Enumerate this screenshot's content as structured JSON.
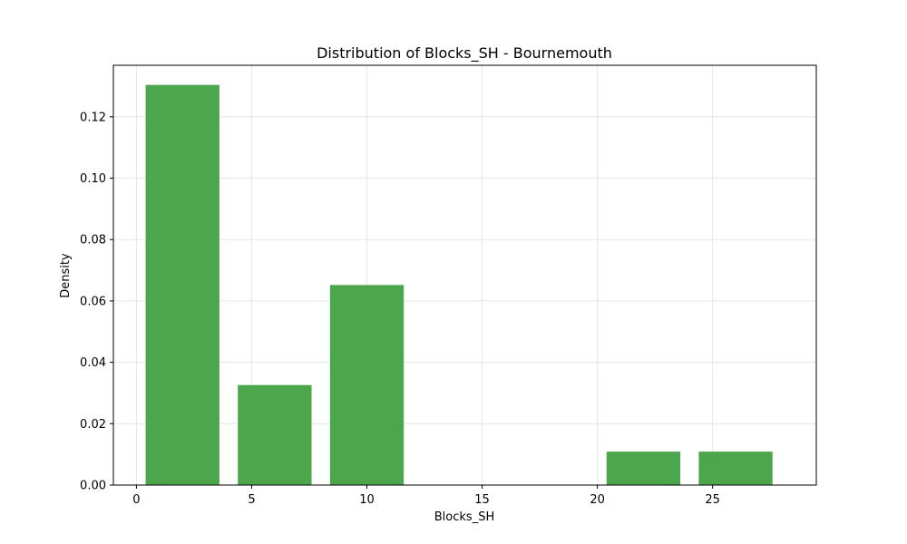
{
  "chart_data": {
    "type": "bar",
    "title": "Distribution of Blocks_SH - Bournemouth",
    "xlabel": "Blocks_SH",
    "ylabel": "Density",
    "xlim": [
      -1.0,
      29.5
    ],
    "ylim": [
      0.0,
      0.1368
    ],
    "xticks": [
      0,
      5,
      10,
      15,
      20,
      25
    ],
    "yticks": [
      0.0,
      0.02,
      0.04,
      0.06,
      0.08,
      0.1,
      0.12
    ],
    "ytick_labels": [
      "0.00",
      "0.02",
      "0.04",
      "0.06",
      "0.08",
      "0.10",
      "0.12"
    ],
    "bins": [
      {
        "start": 0.4,
        "end": 3.6,
        "value": 0.1304
      },
      {
        "start": 4.4,
        "end": 7.6,
        "value": 0.0326
      },
      {
        "start": 8.4,
        "end": 11.6,
        "value": 0.0652
      },
      {
        "start": 20.4,
        "end": 23.6,
        "value": 0.0109
      },
      {
        "start": 24.4,
        "end": 27.6,
        "value": 0.0109
      }
    ],
    "bar_color": "#4ca64c",
    "grid": true
  }
}
